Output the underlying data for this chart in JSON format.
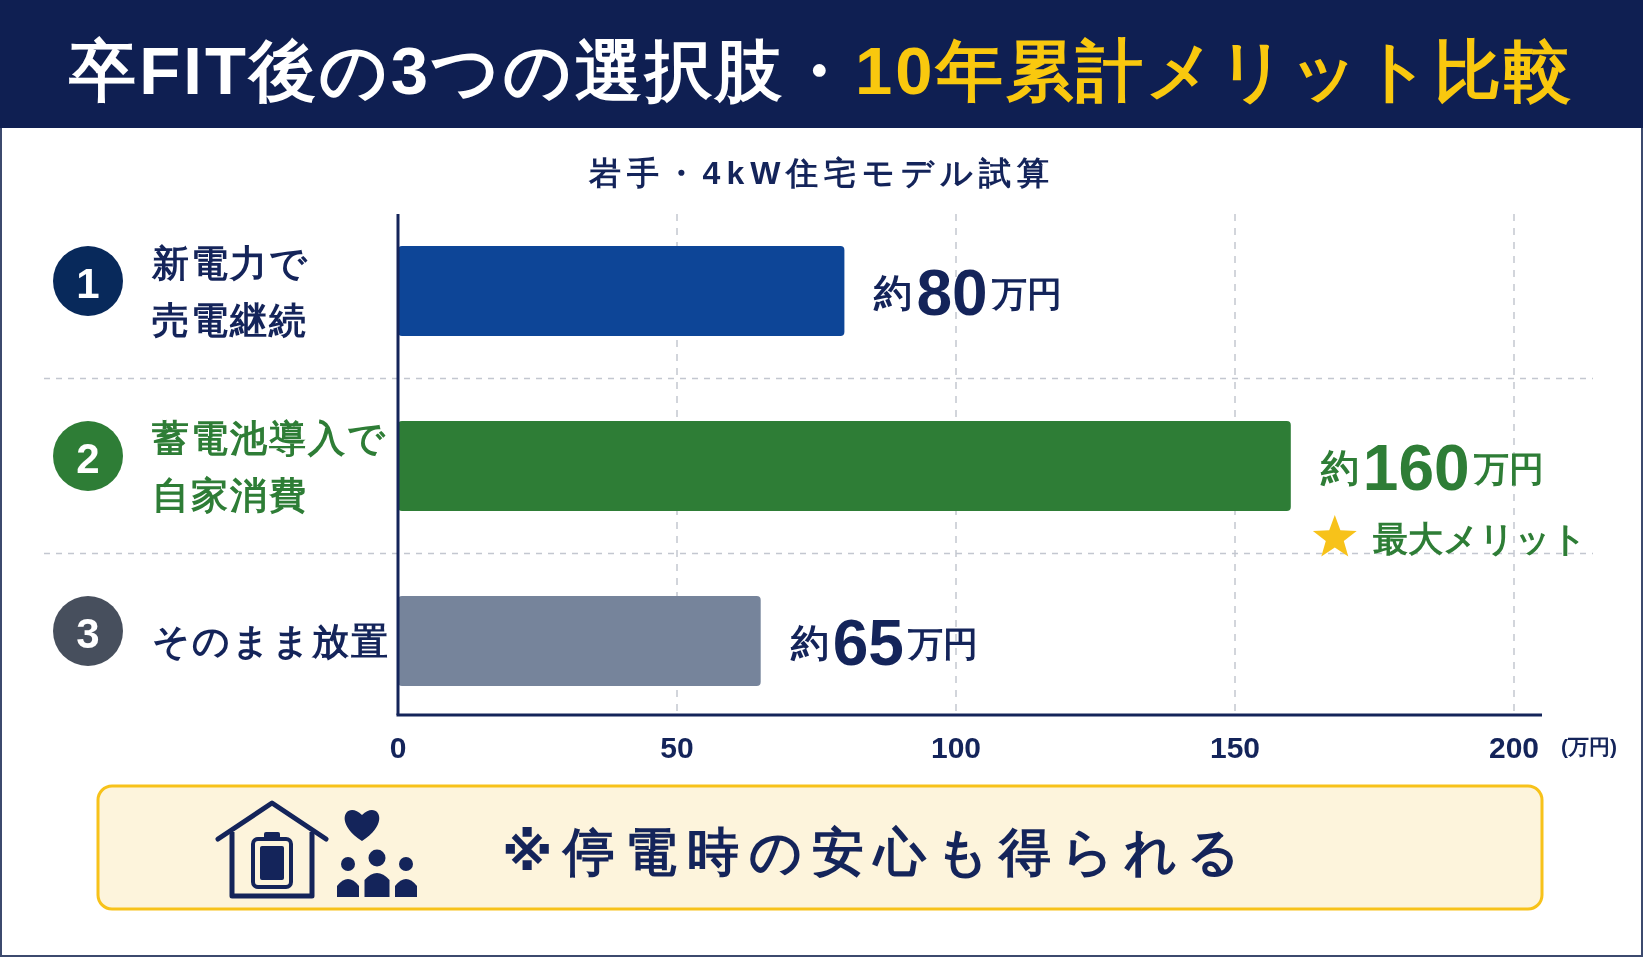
{
  "chart_data": {
    "type": "bar",
    "orientation": "horizontal",
    "title": "卒FIT後の3つの選択肢・**10年累計メリット比較**",
    "subtitle": "岩手・4kW住宅モデル試算",
    "categories": [
      "1 新電力で売電継続",
      "2 蓄電池導入で自家消費",
      "3 そのまま放置"
    ],
    "values": [
      80,
      160,
      65
    ],
    "colors": [
      "#0d4597",
      "#2e7d36",
      "#76849b"
    ],
    "value_labels": [
      "約80万円",
      "約160万円",
      "約65万円"
    ],
    "xlim": [
      0,
      200
    ],
    "xticks": [
      0,
      50,
      100,
      150,
      200
    ],
    "xlabel": "(万円)",
    "grid": true,
    "annotations": [
      {
        "text": "最大メリット",
        "x": 160,
        "y": "2 蓄電池導入で自家消費"
      },
      "※停電時の安心も得られる"
    ]
  }
}
